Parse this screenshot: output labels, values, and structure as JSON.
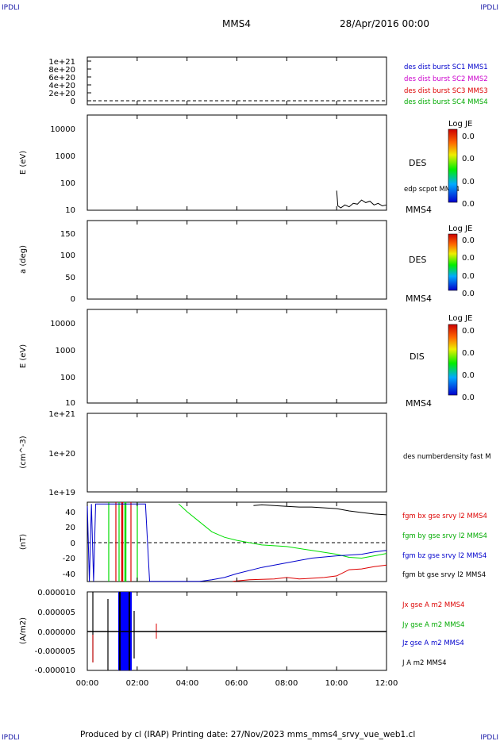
{
  "corners": {
    "tl": "IPDLI",
    "tr": "IPDLI",
    "bl": "IPDLI",
    "br": "IPDLI"
  },
  "header": {
    "spacecraft": "MMS4",
    "date": "28/Apr/2016 00:00"
  },
  "footer": "Produced by cl (IRAP)   Printing date: 27/Nov/2023   mms_mms4_srvy_vue_web1.cl",
  "colors": {
    "mms1": "#0000cc",
    "mms2": "#cc00cc",
    "mms3": "#dd0000",
    "mms4": "#00aa00",
    "bx": "#dd0000",
    "by": "#00dd00",
    "bz": "#0000cc",
    "bt": "#000000"
  },
  "x_ticks": [
    "00:00",
    "02:00",
    "04:00",
    "06:00",
    "08:00",
    "10:00",
    "12:00"
  ],
  "panels": {
    "p1": {
      "ticks": [
        "1e+21",
        "8e+20",
        "6e+20",
        "4e+20",
        "2e+20",
        "0"
      ],
      "legend": [
        "des dist burst SC1 MMS1",
        "des dist burst SC2 MMS2",
        "des dist burst SC3 MMS3",
        "des dist burst SC4 MMS4"
      ]
    },
    "p2": {
      "ylabel": "E (eV)",
      "ticks": [
        "10000",
        "1000",
        "100",
        "10"
      ],
      "side": "DES",
      "right_label": "edp scpot MMS4",
      "bottom_right": "MMS4",
      "cbar": {
        "title": "Log JE",
        "ticks": [
          "0.0",
          "0.0",
          "0.0",
          "0.0"
        ]
      }
    },
    "p3": {
      "ylabel": "a (deg)",
      "ticks": [
        "150",
        "100",
        "50",
        "0"
      ],
      "side": "DES",
      "bottom_right": "MMS4",
      "cbar": {
        "title": "Log JE",
        "ticks": [
          "0.0",
          "0.0",
          "0.0",
          "0.0"
        ]
      }
    },
    "p4": {
      "ylabel": "E (eV)",
      "ticks": [
        "10000",
        "1000",
        "100",
        "10"
      ],
      "side": "DIS",
      "bottom_right": "MMS4",
      "cbar": {
        "title": "Log JE",
        "ticks": [
          "0.0",
          "0.0",
          "0.0",
          "0.0"
        ]
      }
    },
    "p5": {
      "ylabel": "(cm^-3)",
      "ticks": [
        "1e+21",
        "1e+20",
        "1e+19"
      ],
      "right_label": "des numberdensity fast M"
    },
    "p6": {
      "ylabel": "(nT)",
      "ticks": [
        "40",
        "20",
        "0",
        "-20",
        "-40"
      ],
      "legend": [
        "fgm bx gse srvy l2 MMS4",
        "fgm by gse srvy l2 MMS4",
        "fgm bz gse srvy l2 MMS4",
        "fgm bt gse srvy l2 MMS4"
      ]
    },
    "p7": {
      "ylabel": "(A/m2)",
      "ticks": [
        "0.000010",
        "0.000005",
        "0.000000",
        "-0.000005",
        "-0.000010"
      ],
      "legend": [
        "Jx gse A m2 MMS4",
        "Jy gse A m2 MMS4",
        "Jz gse A m2 MMS4",
        "J A m2 MMS4"
      ]
    }
  },
  "chart_data": [
    {
      "type": "line",
      "title": "edp scpot MMS4",
      "ylabel": "E (eV)",
      "y_scale": "log",
      "ylim": [
        10,
        15000
      ],
      "xlim": [
        "00:00",
        "12:00"
      ],
      "series": [
        {
          "name": "edp scpot MMS4",
          "x": [
            "10:00",
            "10:03",
            "10:10",
            "10:20",
            "10:30",
            "10:40",
            "10:50",
            "11:00",
            "11:10",
            "11:20",
            "11:30",
            "11:40",
            "11:50",
            "12:00"
          ],
          "values": [
            45,
            14,
            12,
            15,
            13,
            17,
            16,
            22,
            18,
            20,
            15,
            17,
            14,
            15
          ]
        }
      ]
    },
    {
      "type": "line",
      "ylabel": "(nT)",
      "ylim": [
        -50,
        50
      ],
      "xlim": [
        "00:00",
        "12:00"
      ],
      "series": [
        {
          "name": "fgm bx gse srvy l2 MMS4",
          "x": [
            "05:50",
            "06:30",
            "07:30",
            "08:00",
            "08:30",
            "09:00",
            "09:30",
            "10:00",
            "10:30",
            "11:00",
            "11:30",
            "12:00"
          ],
          "values": [
            -50,
            -48,
            -47,
            -45,
            -47,
            -46,
            -45,
            -43,
            -35,
            -34,
            -31,
            -29
          ]
        },
        {
          "name": "fgm by gse srvy l2 MMS4",
          "x": [
            "03:40",
            "04:00",
            "04:30",
            "05:00",
            "05:30",
            "06:00",
            "06:30",
            "07:00",
            "08:00",
            "09:00",
            "10:00",
            "10:30",
            "11:00",
            "11:30",
            "12:00"
          ],
          "values": [
            50,
            40,
            27,
            14,
            7,
            3,
            0,
            -3,
            -5,
            -10,
            -15,
            -19,
            -20,
            -17,
            -14
          ]
        },
        {
          "name": "fgm bz gse srvy l2 MMS4",
          "x": [
            "00:00",
            "00:05",
            "00:10",
            "00:15",
            "00:20",
            "01:00",
            "01:45",
            "02:20",
            "02:30",
            "03:00",
            "04:00",
            "04:30",
            "05:00",
            "05:30",
            "06:00",
            "07:00",
            "08:00",
            "09:00",
            "10:00",
            "11:00",
            "11:30",
            "12:00"
          ],
          "values": [
            50,
            -50,
            50,
            -50,
            50,
            50,
            50,
            50,
            -50,
            -50,
            -50,
            -50,
            -48,
            -45,
            -40,
            -32,
            -26,
            -20,
            -17,
            -15,
            -12,
            -10
          ]
        },
        {
          "name": "fgm bt gse srvy l2 MMS4",
          "x": [
            "06:40",
            "07:00",
            "07:30",
            "08:00",
            "08:30",
            "09:00",
            "09:30",
            "10:00",
            "10:30",
            "11:00",
            "11:30",
            "12:00"
          ],
          "values": [
            48,
            49,
            48,
            47,
            46,
            46,
            45,
            44,
            41,
            39,
            37,
            36
          ]
        }
      ]
    },
    {
      "type": "line",
      "ylabel": "(A/m2)",
      "ylim": [
        -1e-05,
        1e-05
      ],
      "xlim": [
        "00:00",
        "12:00"
      ],
      "series": [
        {
          "name": "Jx gse A m2 MMS4",
          "x": [
            "00:00",
            "00:20",
            "01:00",
            "01:30",
            "02:00",
            "02:50",
            "12:00"
          ],
          "values": [
            0,
            -5e-06,
            0,
            -2e-06,
            0,
            -1.5e-06,
            0
          ]
        },
        {
          "name": "Jy gse A m2 MMS4",
          "x": [
            "00:00",
            "00:20",
            "01:00",
            "01:30",
            "02:00",
            "12:00"
          ],
          "values": [
            0,
            2e-06,
            0,
            -2e-06,
            0,
            0
          ]
        },
        {
          "name": "Jz gse A m2 MMS4",
          "x": [
            "00:00",
            "01:10",
            "01:20",
            "01:40",
            "01:50",
            "02:00",
            "12:00"
          ],
          "values": [
            0,
            -1e-05,
            1e-05,
            -1e-05,
            1e-05,
            0,
            0
          ]
        },
        {
          "name": "J A m2 MMS4",
          "x": [
            "00:00",
            "00:05",
            "00:10",
            "01:15",
            "01:30",
            "01:45",
            "02:00",
            "12:00"
          ],
          "values": [
            0,
            1e-05,
            0,
            1e-05,
            -1e-05,
            1e-05,
            0,
            0
          ]
        }
      ]
    }
  ]
}
